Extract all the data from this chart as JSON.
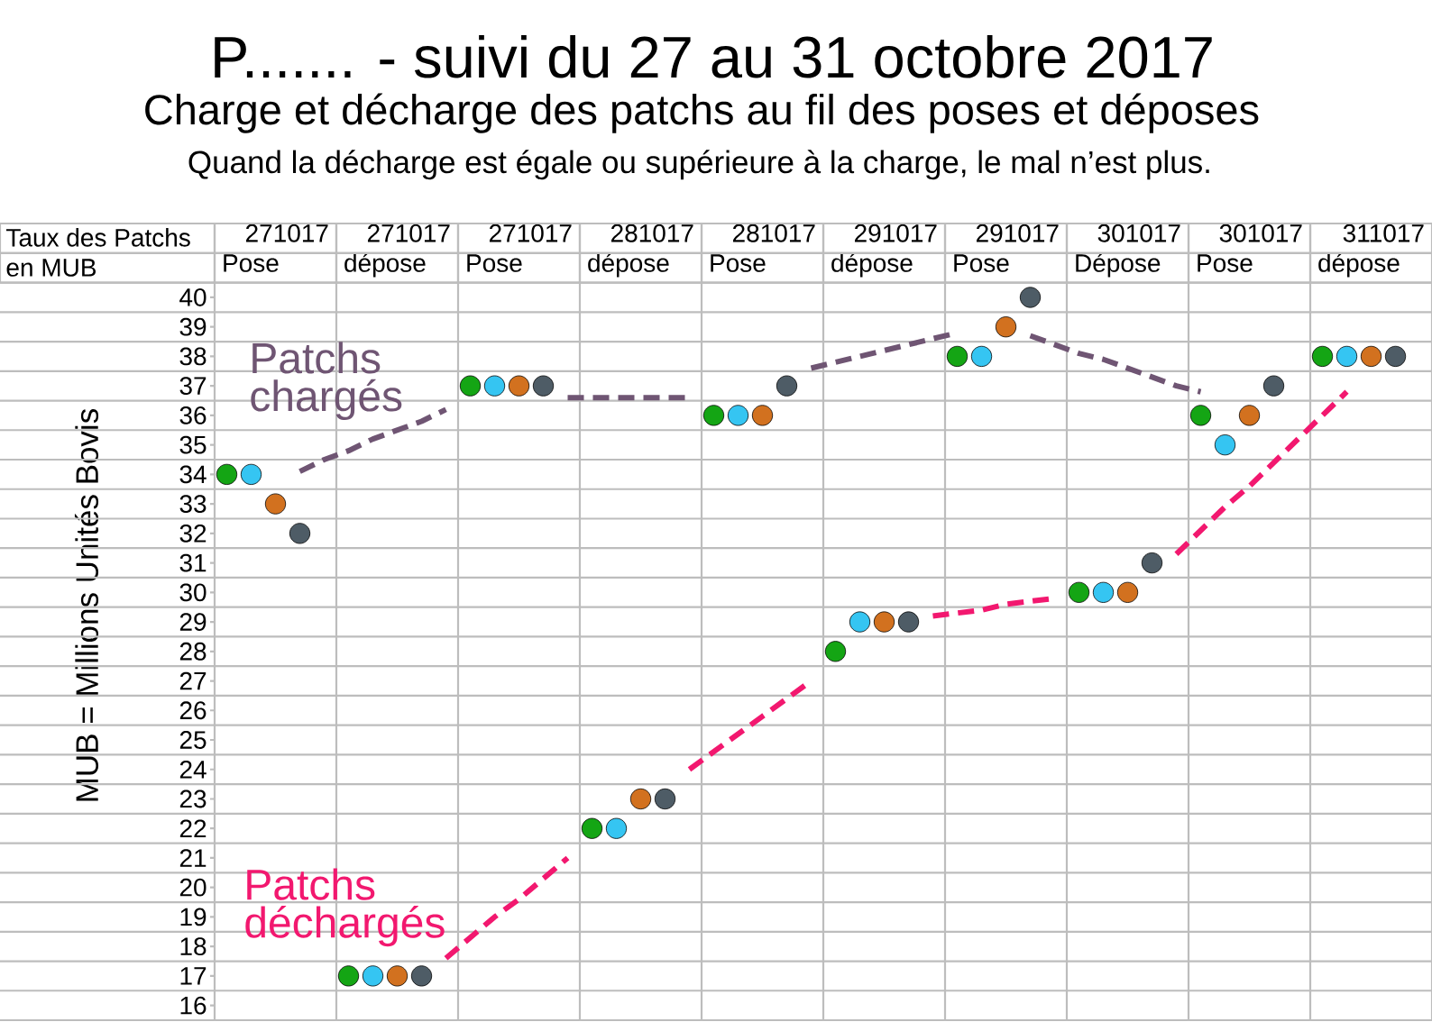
{
  "chart_data": {
    "type": "scatter",
    "title": "P....... - suivi du 27 au 31 octobre 2017",
    "subtitle": "Charge et décharge des patchs au fil des poses et déposes",
    "ylabel": "MUB = Millions Unités Bovis",
    "annotations": [
      "Quand la décharge est égale ou supérieure à la charge, le mal n’est plus.",
      "Taux des Patchs en MUB"
    ],
    "categories": [
      null,
      null,
      "271017 Pose",
      null,
      null,
      null,
      null,
      "271017 dépose",
      null,
      null,
      null,
      null,
      "271017 Pose",
      null,
      null,
      null,
      null,
      "281017 dépose",
      null,
      null,
      null,
      null,
      "281017 Pose",
      null,
      null,
      null,
      null,
      "291017 dépose",
      null,
      null,
      null,
      null,
      "291017 Pose",
      null,
      null,
      null,
      null,
      "301017 Dépose",
      null,
      null,
      null,
      null,
      "301017 Pose",
      null,
      null,
      null,
      null,
      "311017 dépose",
      null,
      null
    ],
    "series": [
      {
        "color": "#14a514",
        "values": [
          34,
          null,
          null,
          null,
          null,
          17,
          null,
          null,
          null,
          null,
          37,
          null,
          null,
          null,
          null,
          22,
          null,
          null,
          null,
          null,
          36,
          null,
          null,
          null,
          null,
          28,
          null,
          null,
          null,
          null,
          38,
          null,
          null,
          null,
          null,
          30,
          null,
          null,
          null,
          null,
          36,
          null,
          null,
          null,
          null,
          38,
          null,
          null,
          null,
          null
        ]
      },
      {
        "color": "#35c5f2",
        "values": [
          null,
          34,
          null,
          null,
          null,
          null,
          17,
          null,
          null,
          null,
          null,
          37,
          null,
          null,
          null,
          null,
          22,
          null,
          null,
          null,
          null,
          36,
          null,
          null,
          null,
          null,
          29,
          null,
          null,
          null,
          null,
          38,
          null,
          null,
          null,
          null,
          30,
          null,
          null,
          null,
          null,
          35,
          null,
          null,
          null,
          null,
          38,
          null,
          null,
          null
        ]
      },
      {
        "color": "#d2711f",
        "values": [
          null,
          null,
          33,
          null,
          null,
          null,
          null,
          17,
          null,
          null,
          null,
          null,
          37,
          null,
          null,
          null,
          null,
          23,
          null,
          null,
          null,
          null,
          36,
          null,
          null,
          null,
          null,
          29,
          null,
          null,
          null,
          null,
          39,
          null,
          null,
          null,
          null,
          30,
          null,
          null,
          null,
          null,
          36,
          null,
          null,
          null,
          null,
          38,
          null,
          null
        ]
      },
      {
        "color": "#4e5c66",
        "values": [
          null,
          null,
          null,
          32,
          null,
          null,
          null,
          null,
          17,
          null,
          null,
          null,
          null,
          37,
          null,
          null,
          null,
          null,
          23,
          null,
          null,
          null,
          null,
          37,
          null,
          null,
          null,
          null,
          29,
          null,
          null,
          null,
          null,
          40,
          null,
          null,
          null,
          null,
          31,
          null,
          null,
          null,
          null,
          37,
          null,
          null,
          null,
          null,
          38,
          null
        ]
      },
      {
        "type": "line",
        "name": "Patchs chargés",
        "color": "#6f5573",
        "line_style": "dashed",
        "marker": "none",
        "values": [
          null,
          null,
          null,
          34.1,
          34.5,
          34.8,
          35.2,
          35.5,
          35.8,
          36.2,
          null,
          null,
          null,
          null,
          36.6,
          36.6,
          36.6,
          36.6,
          36.6,
          36.6,
          null,
          null,
          null,
          null,
          37.6,
          37.8,
          38.0,
          38.2,
          38.4,
          38.6,
          38.8,
          null,
          null,
          38.7,
          38.4,
          38.1,
          37.9,
          37.6,
          37.3,
          37.0,
          36.8,
          null,
          null,
          null,
          null,
          null,
          null,
          null,
          null,
          null
        ]
      },
      {
        "type": "line",
        "name": "Patchs déchargés",
        "color": "#f2186f",
        "line_style": "dashed",
        "marker": "none",
        "values": [
          null,
          null,
          null,
          null,
          null,
          null,
          null,
          null,
          null,
          17.6,
          18.3,
          19.0,
          19.6,
          20.3,
          21.0,
          null,
          null,
          null,
          null,
          24.0,
          24.6,
          25.2,
          25.8,
          26.4,
          27.0,
          null,
          null,
          null,
          null,
          29.2,
          29.3,
          29.4,
          29.6,
          29.7,
          29.8,
          null,
          null,
          null,
          null,
          31.3,
          32.1,
          32.9,
          33.6,
          34.4,
          35.2,
          36.0,
          36.8,
          null,
          null,
          null
        ]
      }
    ],
    "ylim": [
      15.5,
      40.5
    ],
    "yticks": [
      16,
      17,
      18,
      19,
      20,
      21,
      22,
      23,
      24,
      25,
      26,
      27,
      28,
      29,
      30,
      31,
      32,
      33,
      34,
      35,
      36,
      37,
      38,
      39,
      40
    ],
    "grid": true,
    "marker": "circle"
  }
}
